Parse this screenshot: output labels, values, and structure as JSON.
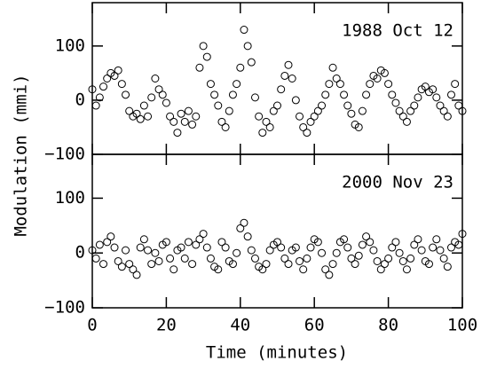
{
  "chart_data": [
    {
      "type": "scatter",
      "annotation": "1988 Oct 12",
      "ylabel": "Modulation (mmi)",
      "color": "#000000",
      "show_xtick_labels": false,
      "xlim": [
        0,
        100
      ],
      "xticks": [
        0,
        20,
        40,
        60,
        80,
        100
      ],
      "ylim": [
        -100,
        180
      ],
      "yticks": [
        {
          "value": -100,
          "label": "−100"
        },
        0,
        100
      ],
      "x": [
        0,
        1,
        2,
        3,
        4,
        5,
        6,
        7,
        8,
        9,
        10,
        11,
        12,
        13,
        14,
        15,
        16,
        17,
        18,
        19,
        20,
        21,
        22,
        23,
        24,
        25,
        26,
        27,
        28,
        29,
        30,
        31,
        32,
        33,
        34,
        35,
        36,
        37,
        38,
        39,
        40,
        41,
        42,
        43,
        44,
        45,
        46,
        47,
        48,
        49,
        50,
        51,
        52,
        53,
        54,
        55,
        56,
        57,
        58,
        59,
        60,
        61,
        62,
        63,
        64,
        65,
        66,
        67,
        68,
        69,
        70,
        71,
        72,
        73,
        74,
        75,
        76,
        77,
        78,
        79,
        80,
        81,
        82,
        83,
        84,
        85,
        86,
        87,
        88,
        89,
        90,
        91,
        92,
        93,
        94,
        95,
        96,
        97,
        98,
        99,
        100
      ],
      "values": [
        20,
        -10,
        5,
        25,
        40,
        50,
        45,
        55,
        30,
        10,
        -20,
        -30,
        -25,
        -35,
        -10,
        -30,
        5,
        40,
        20,
        10,
        -5,
        -30,
        -40,
        -60,
        -25,
        -40,
        -20,
        -45,
        -30,
        60,
        100,
        80,
        30,
        10,
        -10,
        -40,
        -50,
        -20,
        10,
        30,
        60,
        130,
        100,
        70,
        5,
        -30,
        -60,
        -40,
        -50,
        -20,
        -10,
        20,
        45,
        65,
        40,
        0,
        -30,
        -50,
        -60,
        -40,
        -30,
        -20,
        -10,
        10,
        30,
        60,
        40,
        30,
        10,
        -10,
        -25,
        -45,
        -50,
        -20,
        10,
        30,
        45,
        40,
        55,
        50,
        30,
        10,
        -5,
        -20,
        -30,
        -40,
        -20,
        -10,
        5,
        20,
        25,
        15,
        20,
        5,
        -10,
        -20,
        -30,
        10,
        30,
        -10,
        -20
      ]
    },
    {
      "type": "scatter",
      "annotation": "2000 Nov 23",
      "xlabel": "Time (minutes)",
      "color": "#000000",
      "show_xtick_labels": true,
      "xlim": [
        0,
        100
      ],
      "xticks": [
        0,
        20,
        40,
        60,
        80,
        100
      ],
      "ylim": [
        -100,
        180
      ],
      "yticks": [
        {
          "value": -100,
          "label": "−100"
        },
        0,
        100
      ],
      "x": [
        0,
        1,
        2,
        3,
        4,
        5,
        6,
        7,
        8,
        9,
        10,
        11,
        12,
        13,
        14,
        15,
        16,
        17,
        18,
        19,
        20,
        21,
        22,
        23,
        24,
        25,
        26,
        27,
        28,
        29,
        30,
        31,
        32,
        33,
        34,
        35,
        36,
        37,
        38,
        39,
        40,
        41,
        42,
        43,
        44,
        45,
        46,
        47,
        48,
        49,
        50,
        51,
        52,
        53,
        54,
        55,
        56,
        57,
        58,
        59,
        60,
        61,
        62,
        63,
        64,
        65,
        66,
        67,
        68,
        69,
        70,
        71,
        72,
        73,
        74,
        75,
        76,
        77,
        78,
        79,
        80,
        81,
        82,
        83,
        84,
        85,
        86,
        87,
        88,
        89,
        90,
        91,
        92,
        93,
        94,
        95,
        96,
        97,
        98,
        99,
        100
      ],
      "values": [
        5,
        -10,
        15,
        -20,
        20,
        30,
        10,
        -15,
        -25,
        5,
        -20,
        -30,
        -40,
        10,
        25,
        5,
        -20,
        0,
        -15,
        15,
        20,
        -10,
        -30,
        5,
        10,
        -10,
        20,
        -20,
        15,
        25,
        35,
        10,
        -10,
        -25,
        -30,
        20,
        10,
        -15,
        -20,
        0,
        45,
        55,
        30,
        5,
        -10,
        -25,
        -30,
        -20,
        5,
        15,
        20,
        10,
        -10,
        -20,
        5,
        10,
        -15,
        -30,
        -10,
        10,
        25,
        20,
        0,
        -30,
        -40,
        -20,
        0,
        20,
        25,
        10,
        -10,
        -20,
        -5,
        15,
        30,
        20,
        5,
        -15,
        -30,
        -20,
        -10,
        10,
        20,
        0,
        -15,
        -30,
        -10,
        15,
        25,
        5,
        -15,
        -20,
        10,
        25,
        5,
        -10,
        -25,
        10,
        20,
        15,
        35
      ]
    }
  ]
}
